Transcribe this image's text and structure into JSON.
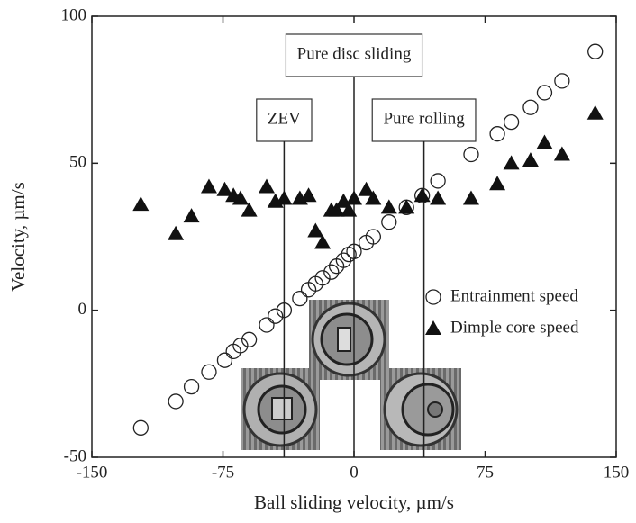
{
  "chart_data": {
    "type": "scatter",
    "xlabel": "Ball sliding velocity, µm/s",
    "ylabel": "Velocity, µm/s",
    "x": [
      -122,
      -102,
      -93,
      -83,
      -74,
      -69,
      -65,
      -60,
      -50,
      -45,
      -40,
      -31,
      -26,
      -22,
      -18,
      -13,
      -10,
      -6,
      -3,
      0,
      7,
      11,
      20,
      30,
      39,
      48,
      67,
      82,
      90,
      101,
      109,
      119,
      138
    ],
    "series": [
      {
        "name": "Entrainment speed",
        "marker": "circle",
        "color": "#222222",
        "values": [
          -40,
          -31,
          -26,
          -21,
          -17,
          -14,
          -12,
          -10,
          -5,
          -2,
          0,
          4,
          7,
          9,
          11,
          13,
          15,
          17,
          19,
          20,
          23,
          25,
          30,
          35,
          39,
          44,
          53,
          60,
          64,
          69,
          74,
          78,
          88
        ]
      },
      {
        "name": "Dimple core speed",
        "marker": "triangle",
        "color": "#111111",
        "values": [
          36,
          26,
          32,
          42,
          41,
          39,
          38,
          34,
          42,
          37,
          38,
          38,
          39,
          27,
          23,
          34,
          34,
          37,
          34,
          38,
          41,
          38,
          35,
          35,
          39,
          38,
          38,
          43,
          50,
          51,
          57,
          53,
          67
        ]
      }
    ],
    "xlim": [
      -150,
      150
    ],
    "xticks": [
      -150,
      -75,
      0,
      75,
      150
    ],
    "ylim": [
      -50,
      100
    ],
    "yticks": [
      -50,
      0,
      50,
      100
    ],
    "annotations": [
      {
        "text": "Pure disc sliding",
        "x": 0
      },
      {
        "text": "ZEV",
        "x": -40
      },
      {
        "text": "Pure rolling",
        "x": 40
      }
    ]
  }
}
